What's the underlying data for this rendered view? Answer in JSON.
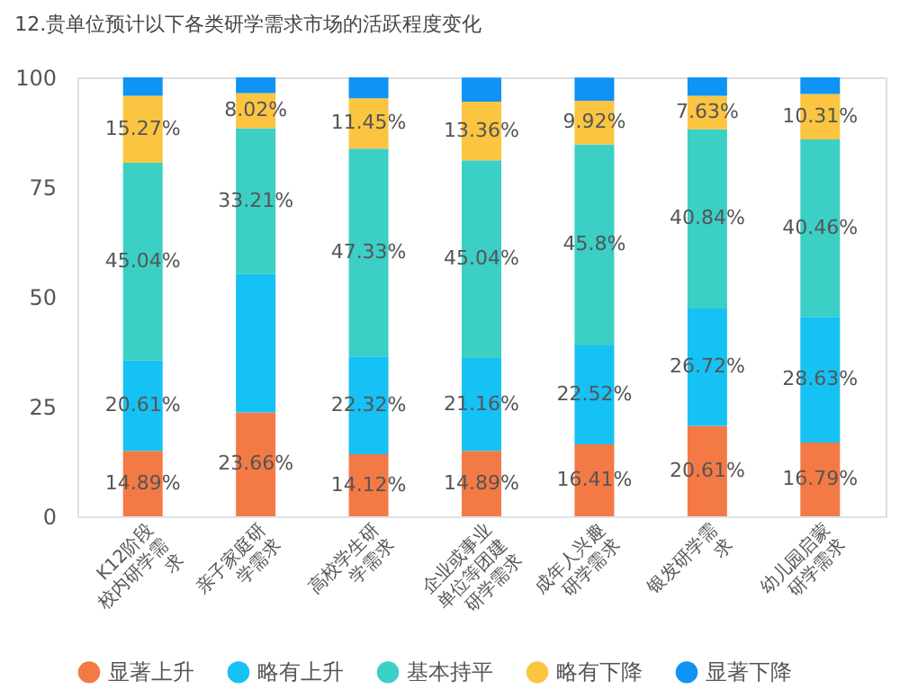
{
  "chart_data": {
    "type": "bar",
    "stacked": true,
    "title": "12.贵单位预计以下各类研学需求市场的活跃程度变化",
    "categories": [
      "K12阶段校内研学需求",
      "亲子家庭研学需求",
      "高校学生研学需求",
      "企业或事业单位等团建研学需求",
      "成年人兴趣研学需求",
      "银发研学需求",
      "幼儿园启蒙研学需求"
    ],
    "series": [
      {
        "name": "显著上升",
        "color": "#f47a45",
        "values": [
          14.89,
          23.66,
          14.12,
          14.89,
          16.41,
          20.61,
          16.79
        ],
        "value_labels": [
          "14.89%",
          "23.66%",
          "14.12%",
          "14.89%",
          "16.41%",
          "20.61%",
          "16.79%"
        ]
      },
      {
        "name": "略有上升",
        "color": "#16c1f3",
        "values": [
          20.61,
          31.5,
          22.32,
          21.16,
          22.52,
          26.72,
          28.63
        ],
        "value_labels": [
          "20.61%",
          null,
          "22.32%",
          "21.16%",
          "22.52%",
          "26.72%",
          "28.63%"
        ]
      },
      {
        "name": "基本持平",
        "color": "#3bcfc6",
        "values": [
          45.04,
          33.21,
          47.33,
          45.04,
          45.8,
          40.84,
          40.46
        ],
        "value_labels": [
          "45.04%",
          "33.21%",
          "47.33%",
          "45.04%",
          "45.8%",
          "40.84%",
          "40.46%"
        ]
      },
      {
        "name": "略有下降",
        "color": "#fcc541",
        "values": [
          15.27,
          8.02,
          11.45,
          13.36,
          9.92,
          7.63,
          10.31
        ],
        "value_labels": [
          "15.27%",
          "8.02%",
          "11.45%",
          "13.36%",
          "9.92%",
          "7.63%",
          "10.31%"
        ]
      },
      {
        "name": "显著下降",
        "color": "#0f93f5",
        "values": [
          4.2,
          3.6,
          4.8,
          5.5,
          5.3,
          4.2,
          3.8
        ],
        "value_labels": [
          null,
          null,
          null,
          null,
          null,
          null,
          null
        ]
      }
    ],
    "ylim": [
      0,
      100
    ],
    "yticks": [
      0,
      25,
      50,
      75,
      100
    ],
    "grid": false,
    "legend": "bottom",
    "marker": "circle"
  }
}
